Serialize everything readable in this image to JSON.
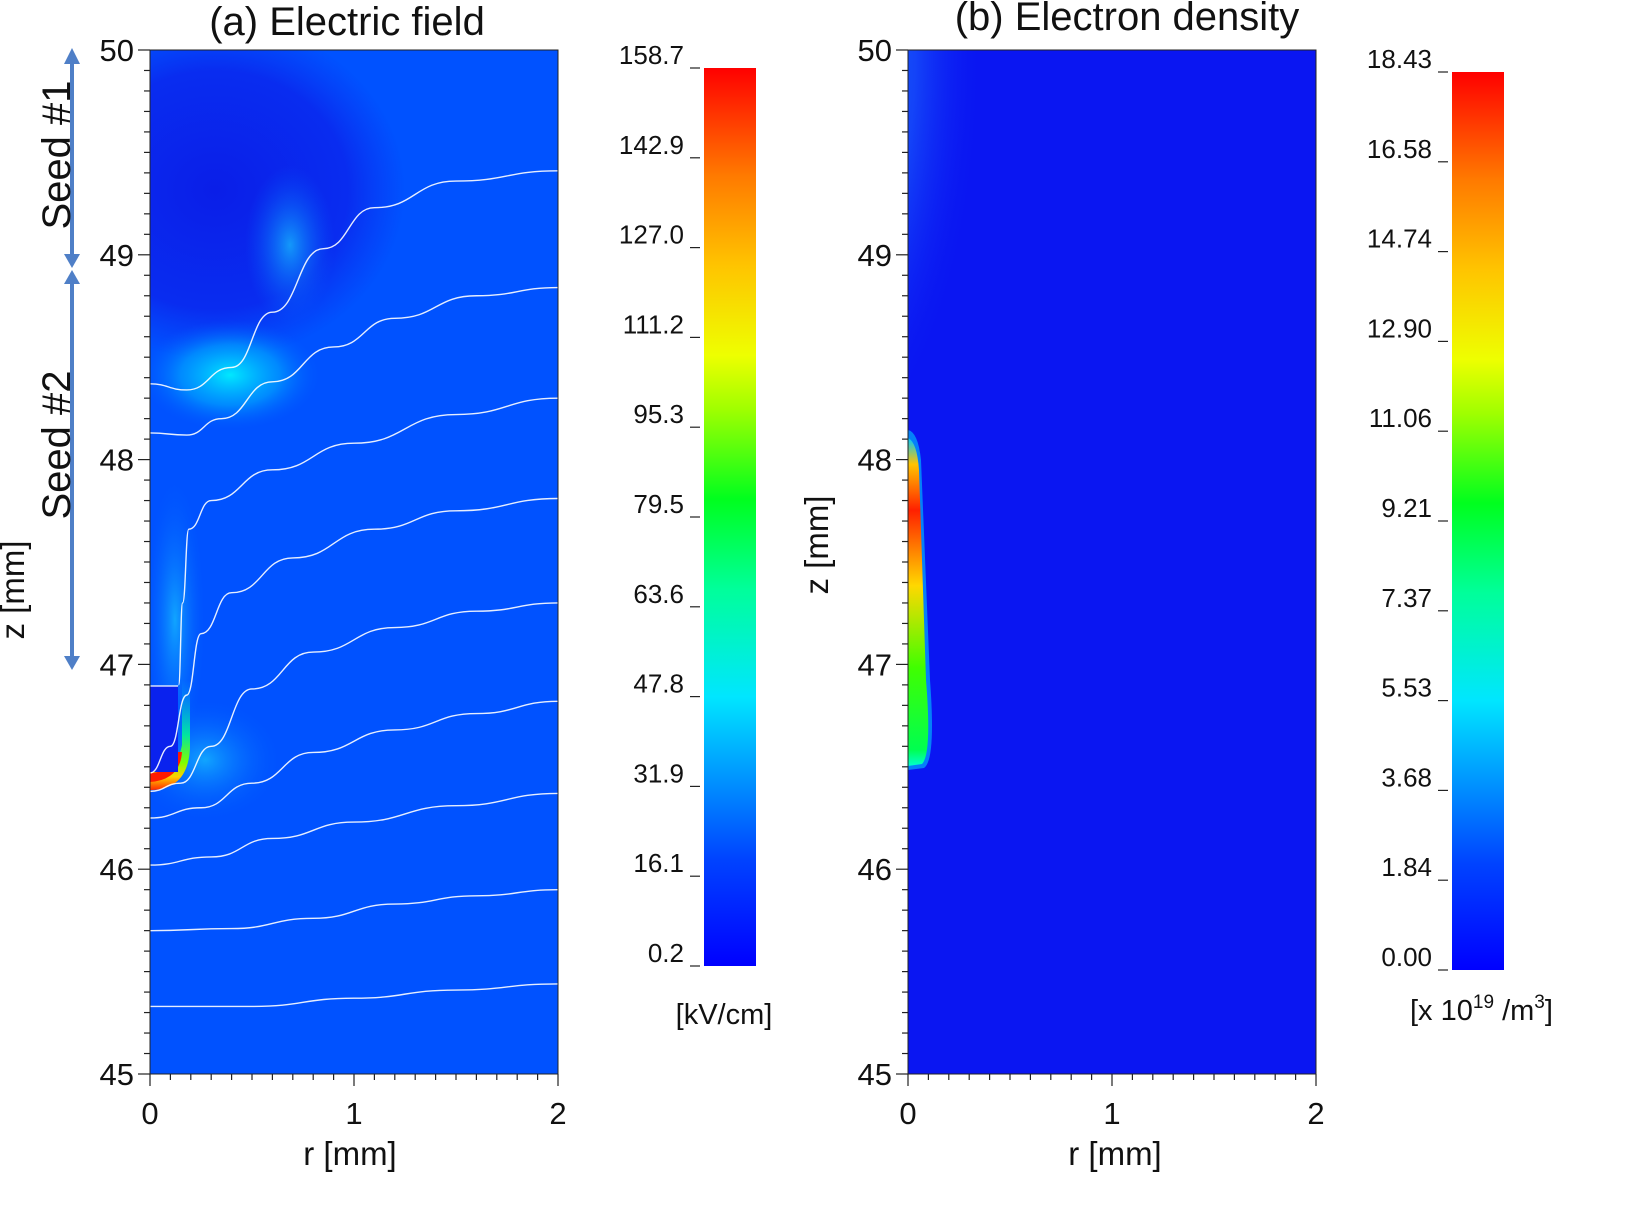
{
  "chart_data": [
    {
      "type": "heatmap",
      "title": "(a) Electric field",
      "xlabel": "r [mm]",
      "ylabel": "z [mm]",
      "xlim": [
        0,
        2
      ],
      "ylim": [
        45,
        50
      ],
      "x_ticks": [
        "0",
        "1",
        "2"
      ],
      "y_ticks": [
        "45",
        "46",
        "47",
        "48",
        "49",
        "50"
      ],
      "colorbar": {
        "unit": "[kV/cm]",
        "ticks": [
          "0.2",
          "16.1",
          "31.9",
          "47.8",
          "63.6",
          "79.5",
          "95.3",
          "111.2",
          "127.0",
          "142.9",
          "158.7"
        ],
        "range": [
          0.2,
          158.7
        ]
      },
      "annotations": [
        {
          "text": "Seed #1",
          "z_range": [
            49,
            50
          ]
        },
        {
          "text": "Seed #2",
          "z_range": [
            47,
            48.95
          ]
        }
      ],
      "equipotential_lines": [
        [
          [
            0,
            45.33
          ],
          [
            0.5,
            45.33
          ],
          [
            1.0,
            45.37
          ],
          [
            1.5,
            45.41
          ],
          [
            2.0,
            45.44
          ]
        ],
        [
          [
            0,
            45.7
          ],
          [
            0.4,
            45.71
          ],
          [
            0.8,
            45.76
          ],
          [
            1.2,
            45.83
          ],
          [
            1.6,
            45.87
          ],
          [
            2.0,
            45.9
          ]
        ],
        [
          [
            0,
            46.02
          ],
          [
            0.3,
            46.06
          ],
          [
            0.6,
            46.15
          ],
          [
            1.0,
            46.23
          ],
          [
            1.5,
            46.31
          ],
          [
            2.0,
            46.37
          ]
        ],
        [
          [
            0,
            46.25
          ],
          [
            0.25,
            46.3
          ],
          [
            0.5,
            46.42
          ],
          [
            0.8,
            46.57
          ],
          [
            1.2,
            46.68
          ],
          [
            1.6,
            46.76
          ],
          [
            2.0,
            46.82
          ]
        ],
        [
          [
            0,
            46.38
          ],
          [
            0.15,
            46.42
          ],
          [
            0.3,
            46.6
          ],
          [
            0.5,
            46.88
          ],
          [
            0.8,
            47.06
          ],
          [
            1.2,
            47.18
          ],
          [
            1.6,
            47.26
          ],
          [
            2.0,
            47.3
          ]
        ],
        [
          [
            0,
            46.47
          ],
          [
            0.1,
            46.6
          ],
          [
            0.18,
            46.85
          ],
          [
            0.25,
            47.15
          ],
          [
            0.4,
            47.35
          ],
          [
            0.7,
            47.52
          ],
          [
            1.1,
            47.66
          ],
          [
            1.5,
            47.75
          ],
          [
            2.0,
            47.81
          ]
        ],
        [
          [
            0.14,
            46.9
          ],
          [
            0.16,
            47.3
          ],
          [
            0.19,
            47.66
          ],
          [
            0.3,
            47.8
          ],
          [
            0.6,
            47.95
          ],
          [
            1.0,
            48.08
          ],
          [
            1.5,
            48.22
          ],
          [
            2.0,
            48.3
          ]
        ],
        [
          [
            0,
            48.13
          ],
          [
            0.18,
            48.12
          ],
          [
            0.35,
            48.2
          ],
          [
            0.6,
            48.38
          ],
          [
            0.9,
            48.55
          ],
          [
            1.2,
            48.69
          ],
          [
            1.6,
            48.8
          ],
          [
            2.0,
            48.84
          ]
        ],
        [
          [
            0,
            48.37
          ],
          [
            0.18,
            48.34
          ],
          [
            0.4,
            48.45
          ],
          [
            0.6,
            48.72
          ],
          [
            0.85,
            49.03
          ],
          [
            1.1,
            49.23
          ],
          [
            1.5,
            49.36
          ],
          [
            2.0,
            49.41
          ]
        ]
      ]
    },
    {
      "type": "heatmap",
      "title": "(b) Electron density",
      "xlabel": "r [mm]",
      "ylabel": "z [mm]",
      "xlim": [
        0,
        2
      ],
      "ylim": [
        45,
        50
      ],
      "x_ticks": [
        "0",
        "1",
        "2"
      ],
      "y_ticks": [
        "45",
        "46",
        "47",
        "48",
        "49",
        "50"
      ],
      "colorbar": {
        "unit": "[x 10",
        "unit_superscript": "19",
        "unit_suffix": " /m",
        "unit_superscript2": "3",
        "unit_end": "]",
        "ticks": [
          "0.00",
          "1.84",
          "3.68",
          "5.53",
          "7.37",
          "9.21",
          "11.06",
          "12.90",
          "14.74",
          "16.58",
          "18.43"
        ],
        "range": [
          0.0,
          18.43
        ]
      }
    }
  ],
  "colors": {
    "field_background": "#0052ff",
    "field_dark": "#0a30f0",
    "density_background": "#0a16f2",
    "arrow": "#4f7fc7",
    "contour": "#ffffff"
  }
}
